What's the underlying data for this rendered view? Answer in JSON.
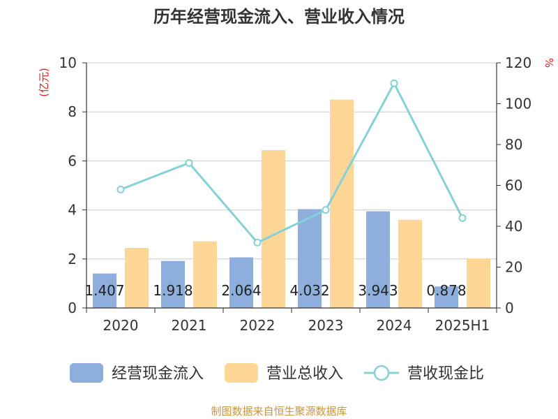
{
  "chart_data": {
    "type": "bar",
    "title": "历年经营现金流入、营业收入情况",
    "categories": [
      "2020",
      "2021",
      "2022",
      "2023",
      "2024",
      "2025H1"
    ],
    "y_left": {
      "unit": "(亿元)",
      "range": [
        0,
        10
      ],
      "ticks": [
        "0",
        "2",
        "4",
        "6",
        "8",
        "10"
      ]
    },
    "y_right": {
      "unit": "%",
      "range": [
        0,
        120
      ],
      "ticks": [
        "0",
        "20",
        "40",
        "60",
        "80",
        "100",
        "120"
      ]
    },
    "grid": true,
    "legend_position": "bottom",
    "series": [
      {
        "name": "经营现金流入",
        "kind": "bar",
        "axis": "left",
        "color": "#8eaedd",
        "values": [
          1.407,
          1.918,
          2.064,
          4.032,
          3.943,
          0.878
        ],
        "labels": [
          "1.407",
          "1.918",
          "2.064",
          "4.032",
          "3.943",
          "0.878"
        ]
      },
      {
        "name": "营业总收入",
        "kind": "bar",
        "axis": "left",
        "color": "#fed797",
        "values": [
          2.45,
          2.72,
          6.44,
          8.5,
          3.6,
          2.02
        ]
      },
      {
        "name": "营收现金比",
        "kind": "line",
        "axis": "right",
        "color": "#86d1d5",
        "values": [
          58,
          71,
          32,
          48,
          110,
          44
        ]
      }
    ]
  },
  "footer": {
    "source": "制图数据来自恒生聚源数据库"
  }
}
